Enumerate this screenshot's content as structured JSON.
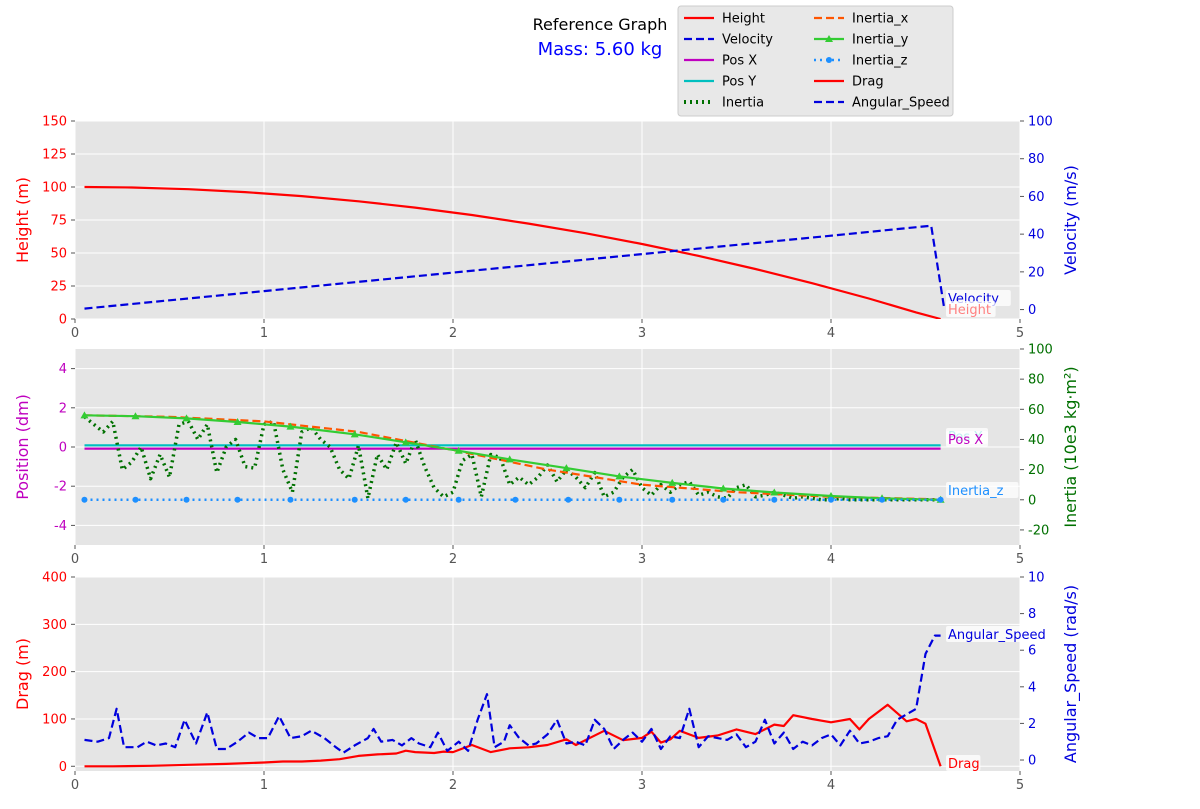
{
  "header": {
    "title": "Reference Graph",
    "subtitle": "Mass: 5.60 kg"
  },
  "colors": {
    "panel_bg": "#e5e5e5",
    "grid": "#ffffff",
    "height": "#ff0000",
    "velocity": "#0000dd",
    "pos_x": "#bf00bf",
    "pos_y": "#00bfbf",
    "inertia": "#007000",
    "inertia_x": "#ff5500",
    "inertia_y": "#33cc33",
    "inertia_z": "#1e90ff",
    "drag": "#ff0000",
    "angular_speed": "#0000dd"
  },
  "legend": {
    "placement": "top-right, outside plot, 2 columns",
    "items": [
      {
        "label": "Height",
        "color": "#ff0000",
        "style": "solid"
      },
      {
        "label": "Velocity",
        "color": "#0000dd",
        "style": "dashed"
      },
      {
        "label": "Pos X",
        "color": "#bf00bf",
        "style": "solid"
      },
      {
        "label": "Pos Y",
        "color": "#00bfbf",
        "style": "solid"
      },
      {
        "label": "Inertia",
        "color": "#007000",
        "style": "dotted"
      },
      {
        "label": "Inertia_x",
        "color": "#ff5500",
        "style": "dashed"
      },
      {
        "label": "Inertia_y",
        "color": "#33cc33",
        "style": "solid-triangle"
      },
      {
        "label": "Inertia_z",
        "color": "#1e90ff",
        "style": "dotted-circle"
      },
      {
        "label": "Drag",
        "color": "#ff0000",
        "style": "solid"
      },
      {
        "label": "Angular_Speed",
        "color": "#0000dd",
        "style": "dashed"
      }
    ]
  },
  "chart_data": [
    {
      "type": "line",
      "xlim": [
        0,
        5
      ],
      "xticks": [
        0,
        1,
        2,
        3,
        4,
        5
      ],
      "left_axis": {
        "label": "Height (m)",
        "color": "#ff0000",
        "lim": [
          0,
          150
        ],
        "ticks": [
          0,
          25,
          50,
          75,
          100,
          125,
          150
        ]
      },
      "right_axis": {
        "label": "Velocity (m/s)",
        "color": "#0000dd",
        "lim": [
          -5,
          100
        ],
        "ticks": [
          0,
          20,
          40,
          60,
          80,
          100
        ]
      },
      "grid": true,
      "annotations": [
        {
          "text": "Velocity",
          "color": "#0000dd"
        },
        {
          "text": "Height",
          "color": "#ff8080"
        }
      ],
      "series": [
        {
          "name": "Height",
          "axis": "left",
          "color": "#ff0000",
          "style": "solid",
          "x": [
            0.05,
            0.3,
            0.6,
            0.9,
            1.2,
            1.5,
            1.8,
            2.1,
            2.4,
            2.7,
            3.0,
            3.3,
            3.6,
            3.9,
            4.2,
            4.45,
            4.58
          ],
          "y": [
            100,
            99.6,
            98.3,
            96.1,
            93.1,
            89.2,
            84.4,
            78.8,
            72.3,
            65.0,
            56.8,
            47.8,
            37.9,
            27.1,
            15.5,
            5.0,
            0
          ]
        },
        {
          "name": "Velocity",
          "axis": "right",
          "color": "#0000dd",
          "style": "dashed",
          "x": [
            0.05,
            1.0,
            2.0,
            3.0,
            4.0,
            4.53,
            4.6
          ],
          "y": [
            0.5,
            9.8,
            19.6,
            29.4,
            39.2,
            44.5,
            0
          ]
        }
      ]
    },
    {
      "type": "line",
      "xlim": [
        0,
        5
      ],
      "xticks": [
        0,
        1,
        2,
        3,
        4,
        5
      ],
      "left_axis": {
        "label": "Position (dm)",
        "color": "#bf00bf",
        "lim": [
          -5,
          5
        ],
        "ticks": [
          -4,
          -2,
          0,
          2,
          4
        ]
      },
      "right_axis": {
        "label": "Inertia (10e3 kg·m²)",
        "color": "#007000",
        "lim": [
          -30,
          100
        ],
        "ticks": [
          -20,
          0,
          20,
          40,
          60,
          80,
          100
        ]
      },
      "grid": true,
      "annotations": [
        {
          "text": "Pos Y",
          "color": "#00bfbf"
        },
        {
          "text": "Pos X",
          "color": "#bf00bf"
        },
        {
          "text": "Inertia_z",
          "color": "#1e90ff"
        }
      ],
      "series": [
        {
          "name": "Pos X",
          "axis": "left",
          "color": "#bf00bf",
          "style": "solid",
          "x": [
            0.05,
            4.58
          ],
          "y": [
            -0.08,
            -0.08
          ]
        },
        {
          "name": "Pos Y",
          "axis": "left",
          "color": "#00bfbf",
          "style": "solid",
          "x": [
            0.05,
            4.58
          ],
          "y": [
            0.08,
            0.08
          ]
        },
        {
          "name": "Inertia",
          "axis": "right",
          "color": "#007000",
          "style": "dotted",
          "x": [
            0.05,
            0.1,
            0.15,
            0.2,
            0.25,
            0.3,
            0.35,
            0.4,
            0.45,
            0.5,
            0.55,
            0.6,
            0.65,
            0.7,
            0.75,
            0.8,
            0.85,
            0.9,
            0.95,
            1.0,
            1.05,
            1.1,
            1.15,
            1.2,
            1.25,
            1.3,
            1.35,
            1.4,
            1.45,
            1.5,
            1.55,
            1.6,
            1.65,
            1.7,
            1.75,
            1.8,
            1.85,
            1.9,
            1.95,
            2.0,
            2.05,
            2.1,
            2.15,
            2.2,
            2.25,
            2.3,
            2.35,
            2.4,
            2.45,
            2.5,
            2.55,
            2.6,
            2.65,
            2.7,
            2.75,
            2.8,
            2.85,
            2.9,
            2.95,
            3.0,
            3.05,
            3.1,
            3.15,
            3.2,
            3.25,
            3.3,
            3.35,
            3.4,
            3.45,
            3.5,
            3.55,
            3.6,
            3.65,
            3.7,
            3.75,
            3.8,
            3.85,
            3.9,
            3.95,
            4.0,
            4.05,
            4.1,
            4.15,
            4.2,
            4.25,
            4.3,
            4.35,
            4.4,
            4.45,
            4.5,
            4.55,
            4.58
          ],
          "y": [
            55,
            50,
            45,
            52,
            20,
            25,
            35,
            14,
            30,
            15,
            50,
            52,
            40,
            50,
            18,
            35,
            40,
            22,
            21,
            50,
            52,
            20,
            5,
            45,
            48,
            40,
            35,
            20,
            14,
            36,
            1,
            30,
            20,
            38,
            24,
            40,
            22,
            8,
            2,
            5,
            26,
            30,
            2,
            30,
            28,
            10,
            15,
            10,
            15,
            23,
            12,
            20,
            15,
            8,
            18,
            2,
            5,
            15,
            20,
            8,
            3,
            10,
            5,
            10,
            12,
            3,
            5,
            2,
            1,
            8,
            10,
            2,
            3,
            5,
            3,
            1,
            2,
            1,
            0,
            0,
            1,
            0,
            0,
            0,
            0,
            0,
            0,
            0,
            0,
            0,
            0,
            0
          ]
        },
        {
          "name": "Inertia_x",
          "axis": "right",
          "color": "#ff5500",
          "style": "dashed",
          "x": [
            0.05,
            0.5,
            1.0,
            1.5,
            2.0,
            2.5,
            3.0,
            3.5,
            4.0,
            4.5,
            4.58
          ],
          "y": [
            56,
            55,
            52,
            45,
            33,
            20,
            10,
            5,
            2,
            0.5,
            0
          ]
        },
        {
          "name": "Inertia_y",
          "axis": "right",
          "color": "#33cc33",
          "style": "solid-triangle",
          "x": [
            0.05,
            0.32,
            0.59,
            0.86,
            1.14,
            1.48,
            1.75,
            2.03,
            2.3,
            2.6,
            2.88,
            3.16,
            3.43,
            3.7,
            4.0,
            4.27,
            4.58
          ],
          "y": [
            56,
            55.4,
            54,
            51.6,
            48.5,
            43.4,
            38.1,
            32.5,
            26.8,
            21,
            15.5,
            11.2,
            7.5,
            4.8,
            2.5,
            1,
            0
          ]
        },
        {
          "name": "Inertia_z",
          "axis": "right",
          "color": "#1e90ff",
          "style": "dotted-circle",
          "x": [
            0.05,
            0.32,
            0.59,
            0.86,
            1.14,
            1.48,
            1.75,
            2.03,
            2.33,
            2.61,
            2.88,
            3.16,
            3.43,
            3.7,
            4.0,
            4.27,
            4.58
          ],
          "y": [
            0,
            0,
            0,
            0,
            0,
            0,
            0,
            0,
            0,
            0,
            0,
            0,
            0,
            0,
            0,
            0,
            0
          ]
        }
      ]
    },
    {
      "type": "line",
      "xlim": [
        0,
        5
      ],
      "xticks": [
        0,
        1,
        2,
        3,
        4,
        5
      ],
      "left_axis": {
        "label": "Drag (m)",
        "color": "#ff0000",
        "lim": [
          -10,
          400
        ],
        "ticks": [
          0,
          100,
          200,
          300,
          400
        ]
      },
      "right_axis": {
        "label": "Angular_Speed (rad/s)",
        "color": "#0000dd",
        "lim": [
          -0.6,
          10
        ],
        "ticks": [
          0,
          2,
          4,
          6,
          8,
          10
        ]
      },
      "grid": true,
      "annotations": [
        {
          "text": "Angular_Speed",
          "color": "#0000dd"
        },
        {
          "text": "Drag",
          "color": "#ff0000"
        }
      ],
      "series": [
        {
          "name": "Drag",
          "axis": "left",
          "color": "#ff0000",
          "style": "solid",
          "x": [
            0.05,
            0.2,
            0.4,
            0.6,
            0.8,
            1.0,
            1.1,
            1.2,
            1.3,
            1.4,
            1.5,
            1.6,
            1.7,
            1.75,
            1.8,
            1.9,
            1.95,
            2.0,
            2.1,
            2.2,
            2.3,
            2.4,
            2.5,
            2.6,
            2.65,
            2.7,
            2.8,
            2.9,
            3.0,
            3.05,
            3.1,
            3.15,
            3.2,
            3.3,
            3.4,
            3.5,
            3.6,
            3.7,
            3.75,
            3.8,
            3.9,
            4.0,
            4.1,
            4.15,
            4.2,
            4.3,
            4.4,
            4.45,
            4.5,
            4.58
          ],
          "y": [
            0,
            0,
            1,
            3,
            5,
            8,
            10,
            10,
            12,
            15,
            22,
            25,
            27,
            33,
            30,
            28,
            31,
            30,
            45,
            30,
            38,
            40,
            45,
            57,
            45,
            55,
            75,
            55,
            60,
            73,
            50,
            57,
            75,
            60,
            65,
            78,
            68,
            88,
            85,
            108,
            100,
            93,
            100,
            78,
            100,
            130,
            95,
            100,
            90,
            0
          ]
        },
        {
          "name": "Angular_Speed",
          "axis": "right",
          "color": "#0000dd",
          "style": "dashed",
          "x": [
            0.05,
            0.12,
            0.18,
            0.22,
            0.26,
            0.33,
            0.38,
            0.43,
            0.48,
            0.53,
            0.58,
            0.64,
            0.7,
            0.75,
            0.8,
            0.86,
            0.92,
            0.97,
            1.02,
            1.08,
            1.14,
            1.2,
            1.25,
            1.32,
            1.38,
            1.42,
            1.48,
            1.55,
            1.58,
            1.62,
            1.68,
            1.73,
            1.78,
            1.82,
            1.88,
            1.92,
            1.97,
            2.03,
            2.08,
            2.13,
            2.18,
            2.22,
            2.27,
            2.3,
            2.35,
            2.4,
            2.44,
            2.5,
            2.55,
            2.6,
            2.65,
            2.7,
            2.75,
            2.8,
            2.85,
            2.9,
            2.95,
            3.0,
            3.05,
            3.1,
            3.15,
            3.2,
            3.25,
            3.3,
            3.35,
            3.4,
            3.45,
            3.5,
            3.55,
            3.6,
            3.65,
            3.7,
            3.75,
            3.8,
            3.85,
            3.9,
            3.95,
            4.0,
            4.05,
            4.1,
            4.15,
            4.2,
            4.25,
            4.3,
            4.35,
            4.4,
            4.45,
            4.5,
            4.55,
            4.58
          ],
          "y": [
            1.1,
            1.0,
            1.2,
            2.8,
            0.7,
            0.7,
            1.0,
            0.8,
            0.9,
            0.7,
            2.2,
            0.9,
            2.6,
            0.6,
            0.6,
            1.0,
            1.5,
            1.2,
            1.2,
            2.4,
            1.2,
            1.3,
            1.6,
            1.2,
            0.7,
            0.4,
            0.8,
            1.2,
            1.7,
            1.0,
            1.1,
            0.8,
            1.2,
            0.9,
            0.7,
            1.5,
            0.5,
            1.0,
            0.5,
            2.2,
            3.6,
            0.7,
            1.0,
            1.9,
            1.2,
            0.8,
            0.9,
            1.4,
            2.2,
            0.9,
            1.0,
            0.8,
            2.2,
            1.7,
            0.6,
            1.1,
            1.5,
            1.0,
            1.7,
            0.6,
            1.3,
            1.2,
            2.8,
            0.7,
            1.3,
            1.2,
            1.1,
            1.4,
            0.7,
            1.0,
            2.2,
            0.9,
            1.5,
            0.6,
            1.0,
            0.8,
            1.2,
            1.4,
            0.8,
            1.6,
            0.9,
            1.0,
            1.2,
            1.3,
            2.2,
            2.5,
            2.8,
            5.8,
            6.8,
            6.8
          ]
        }
      ]
    }
  ]
}
